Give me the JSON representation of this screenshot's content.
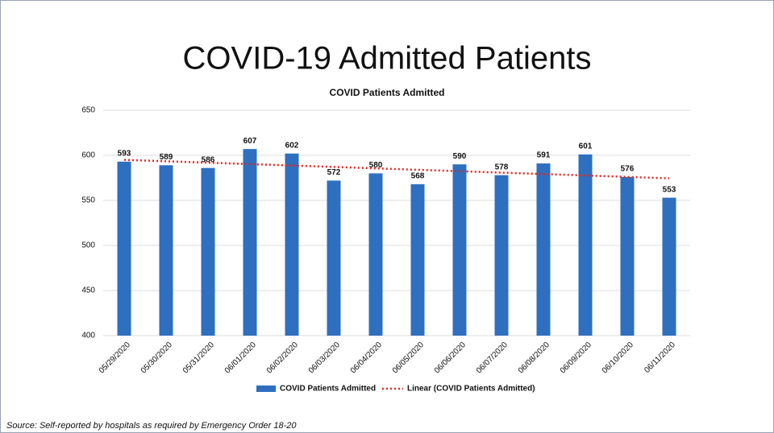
{
  "slide_title": "COVID-19 Admitted Patients",
  "source": "Source: Self-reported by hospitals as required by Emergency Order 18-20",
  "chart_data": {
    "type": "bar",
    "title": "COVID Patients Admitted",
    "categories": [
      "05/29/2020",
      "05/30/2020",
      "05/31/2020",
      "06/01/2020",
      "06/02/2020",
      "06/03/2020",
      "06/04/2020",
      "06/05/2020",
      "06/06/2020",
      "06/07/2020",
      "06/08/2020",
      "06/09/2020",
      "06/10/2020",
      "06/11/2020"
    ],
    "series": [
      {
        "name": "COVID Patients Admitted",
        "color": "#2e6fc0",
        "values": [
          593,
          589,
          586,
          607,
          602,
          572,
          580,
          568,
          590,
          578,
          591,
          601,
          576,
          553
        ]
      }
    ],
    "trendline": {
      "name": "Linear (COVID Patients Admitted)",
      "color": "#e8251f",
      "values": [
        595,
        574.5
      ]
    },
    "ylim": [
      400,
      650
    ],
    "yticks": [
      400,
      450,
      500,
      550,
      600,
      650
    ],
    "grid": true
  }
}
